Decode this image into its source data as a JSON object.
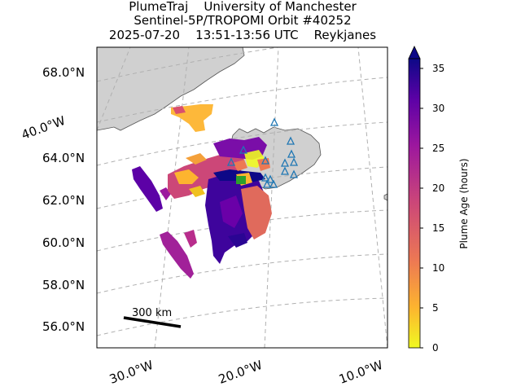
{
  "title": {
    "line1": "PlumeTraj    University of Manchester",
    "line2": "Sentinel-5P/TROPOMI Orbit #40252",
    "line3": "2025-07-20    13:51-13:56 UTC    Reykjanes"
  },
  "lat_labels": [
    "68.0°N",
    "64.0°N",
    "62.0°N",
    "60.0°N",
    "58.0°N",
    "56.0°N"
  ],
  "lon_labels": [
    "40.0°W",
    "30.0°W",
    "20.0°W",
    "10.0°W"
  ],
  "scale_bar": {
    "label": "300 km"
  },
  "colorbar": {
    "label": "Plume Age (hours)",
    "ticks": [
      "35",
      "30",
      "25",
      "20",
      "15",
      "10",
      "5",
      "0"
    ],
    "colormap": [
      "#f0f921",
      "#fdb42f",
      "#ed7953",
      "#cc4778",
      "#9c179e",
      "#5c01a6",
      "#0d0887"
    ]
  },
  "colors": {
    "land": "#d0d0d0",
    "coast": "#555555",
    "gridline": "#b0b0b0",
    "volcano_marker": "#1f77b4"
  }
}
